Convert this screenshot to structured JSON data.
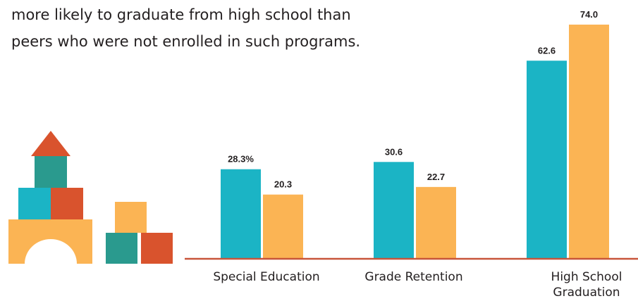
{
  "intro_text": {
    "line1": "more likely to graduate from high school than",
    "line2": "peers who were not enrolled in such programs."
  },
  "colors": {
    "series_a": "#1bb4c5",
    "series_b": "#fbb454",
    "baseline": "#c8553a",
    "block_red": "#d9532d",
    "block_teal": "#2a9a8e",
    "block_blue": "#1bb4c5",
    "block_orange": "#fbb454"
  },
  "icons": {
    "illustration": "toy-blocks-illustration"
  },
  "chart_data": {
    "type": "bar",
    "categories": [
      "Special Education",
      "Grade Retention",
      "High School Graduation"
    ],
    "category_lines": [
      [
        "Special Education"
      ],
      [
        "Grade Retention"
      ],
      [
        "High School",
        "Graduation"
      ]
    ],
    "series": [
      {
        "values": [
          28.3,
          30.6,
          62.6
        ],
        "labels": [
          "28.3%",
          "30.6",
          "62.6"
        ]
      },
      {
        "values": [
          20.3,
          22.7,
          74.0
        ],
        "labels": [
          "20.3",
          "22.7",
          "74.0"
        ]
      }
    ],
    "ylim": [
      0,
      74.0
    ],
    "grid": false,
    "legend": "none"
  }
}
